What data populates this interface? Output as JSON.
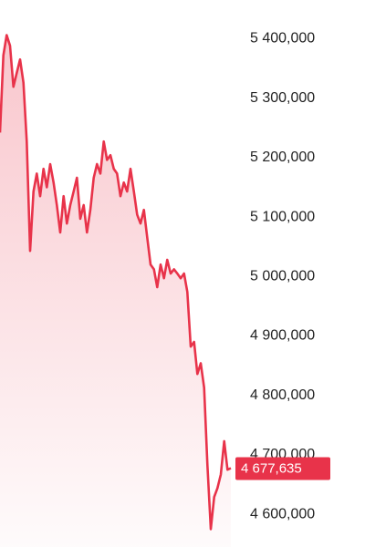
{
  "chart_data": {
    "type": "line",
    "color": "#e8334a",
    "values": [
      5242000,
      5372000,
      5406000,
      5388000,
      5319000,
      5342000,
      5365000,
      5326000,
      5227000,
      5043000,
      5143000,
      5173000,
      5135000,
      5181000,
      5150000,
      5189000,
      5158000,
      5120000,
      5074000,
      5135000,
      5089000,
      5120000,
      5143000,
      5166000,
      5097000,
      5120000,
      5074000,
      5112000,
      5166000,
      5189000,
      5173000,
      5227000,
      5196000,
      5204000,
      5181000,
      5173000,
      5135000,
      5158000,
      5143000,
      5181000,
      5143000,
      5104000,
      5089000,
      5112000,
      5066000,
      5020000,
      5012000,
      4982000,
      5020000,
      4997000,
      5028000,
      5005000,
      5012000,
      5005000,
      4997000,
      5005000,
      4974000,
      4882000,
      4890000,
      4836000,
      4854000,
      4813000,
      4683000,
      4575000,
      4629000,
      4644000,
      4667000,
      4723000,
      4675000,
      4677635
    ],
    "ylim": [
      4545000,
      5465000
    ],
    "yticks": [
      {
        "value": 4600000,
        "label": "4 600,000"
      },
      {
        "value": 4700000,
        "label": "4 700,000"
      },
      {
        "value": 4800000,
        "label": "4 800,000"
      },
      {
        "value": 4900000,
        "label": "4 900,000"
      },
      {
        "value": 5000000,
        "label": "5 000,000"
      },
      {
        "value": 5100000,
        "label": "5 100,000"
      },
      {
        "value": 5200000,
        "label": "5 200,000"
      },
      {
        "value": 5300000,
        "label": "5 300,000"
      },
      {
        "value": 5400000,
        "label": "5 400,000"
      }
    ],
    "current_price": {
      "value": 4677635,
      "label": "4 677,635"
    }
  }
}
